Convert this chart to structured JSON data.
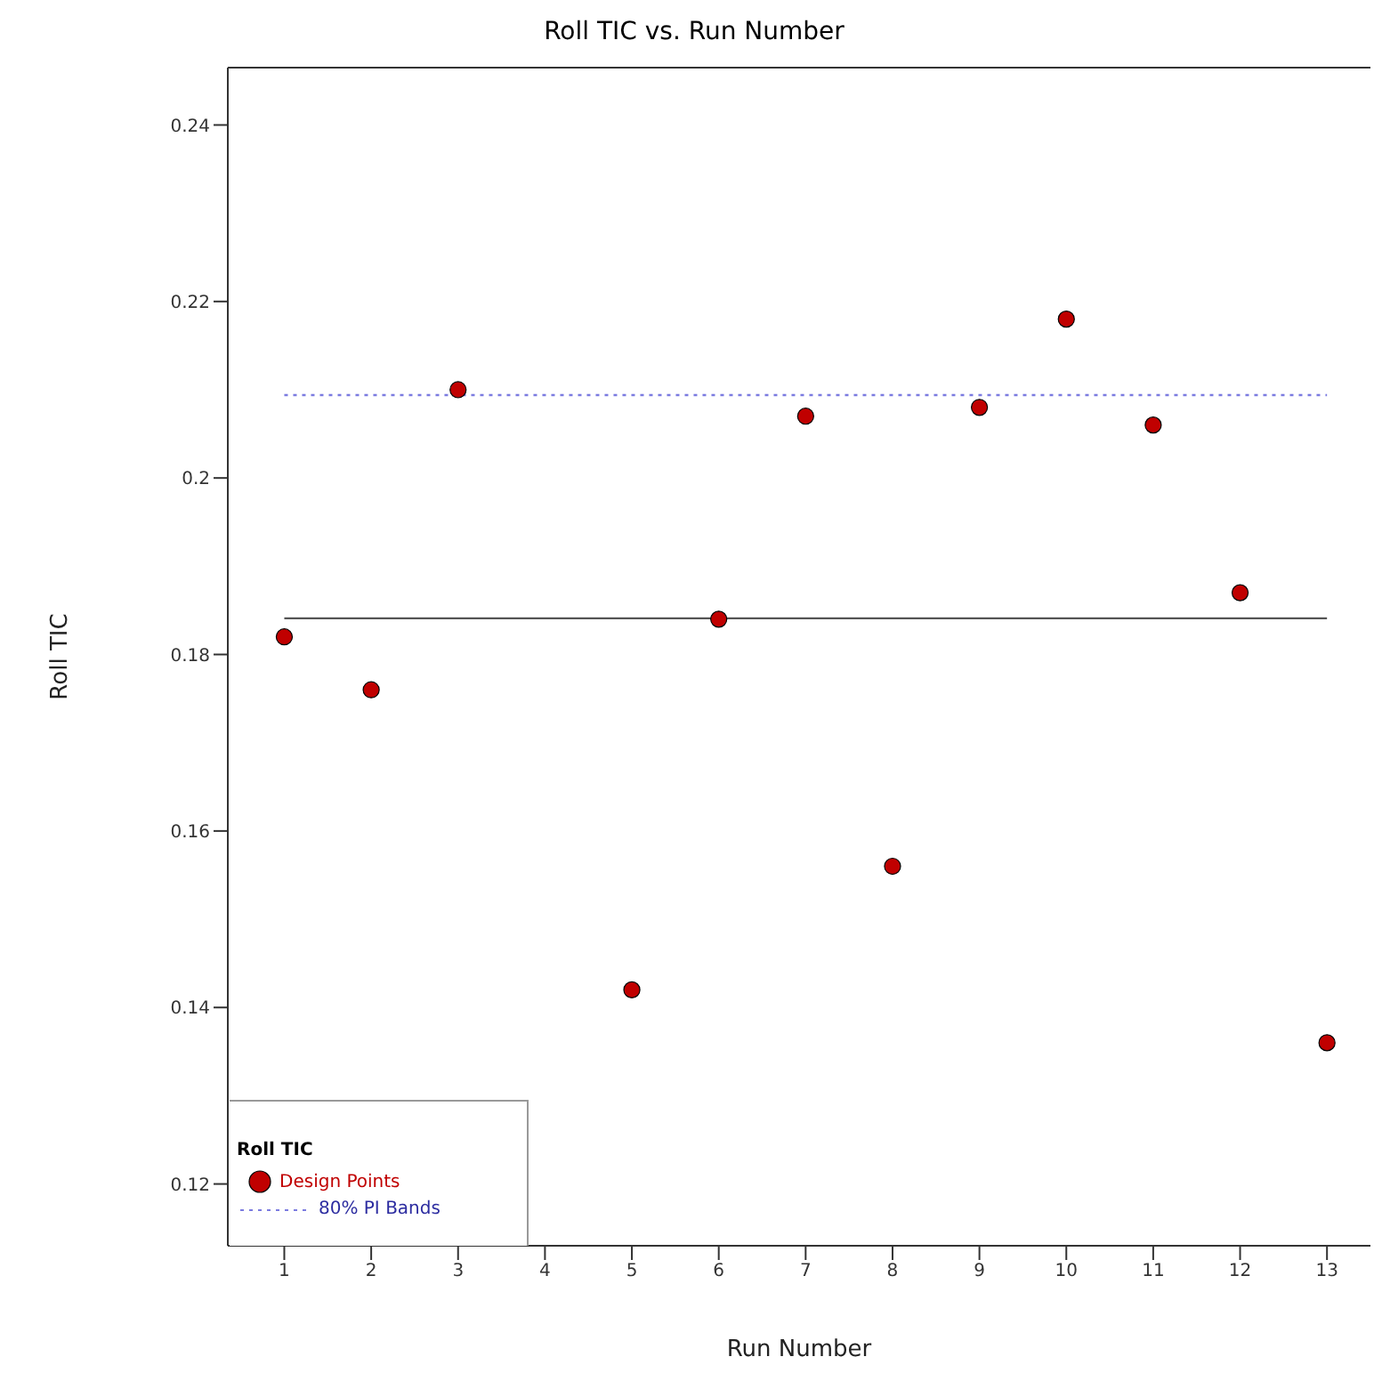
{
  "chart_data": {
    "type": "scatter",
    "title": "Roll TIC vs. Run Number",
    "xlabel": "Run Number",
    "ylabel": "Roll TIC",
    "legend_title": "Roll TIC",
    "legend": "bottom left",
    "grid": false,
    "xlim": [
      0.35,
      13.5
    ],
    "xticks": [
      1,
      2,
      3,
      4,
      5,
      6,
      7,
      8,
      9,
      10,
      11,
      12,
      13
    ],
    "ylim": [
      0.113,
      0.2465
    ],
    "yticks": [
      0.12,
      0.14,
      0.16,
      0.18,
      0.2,
      0.22,
      0.24
    ],
    "series": [
      {
        "name": "Design Points",
        "marker": "circle",
        "color": "#c00000",
        "x": [
          1,
          2,
          3,
          5,
          6,
          7,
          8,
          9,
          10,
          11,
          12,
          13
        ],
        "values": [
          0.182,
          0.176,
          0.21,
          0.142,
          0.184,
          0.207,
          0.156,
          0.208,
          0.218,
          0.206,
          0.187,
          0.136
        ]
      },
      {
        "name": "80% PI Bands",
        "type": "line",
        "marker": "none",
        "line_style": "dotted",
        "color": "#7b7be0",
        "x": [
          1,
          13
        ],
        "values": [
          0.2094,
          0.2094
        ]
      },
      {
        "type": "line",
        "marker": "none",
        "line_style": "solid",
        "color": "#555555",
        "x": [
          1,
          13
        ],
        "values": [
          0.1841,
          0.1841
        ]
      }
    ]
  }
}
